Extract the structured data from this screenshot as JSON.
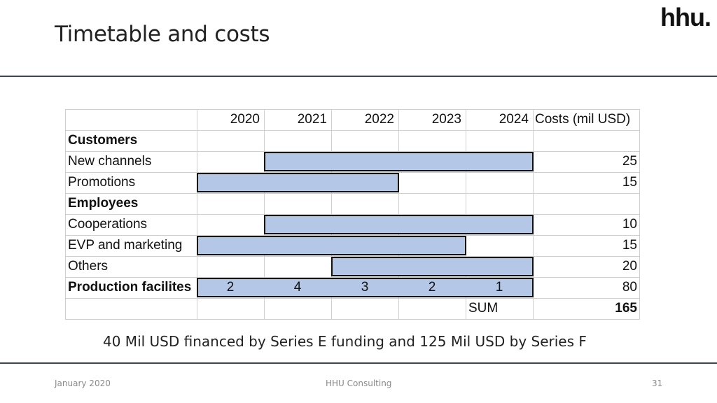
{
  "logo": "hhu.",
  "slide": {
    "title": "Timetable and costs"
  },
  "table": {
    "years": [
      "2020",
      "2021",
      "2022",
      "2023",
      "2024"
    ],
    "cost_header": "Costs (mil USD)",
    "rows": [
      {
        "label": "Customers",
        "bold": true,
        "cost": "",
        "bar": null
      },
      {
        "label": "New channels",
        "bold": false,
        "cost": "25",
        "bar": {
          "start": "2021",
          "end": "2024"
        }
      },
      {
        "label": "Promotions",
        "bold": false,
        "cost": "15",
        "bar": {
          "start": "2020",
          "end": "2022"
        }
      },
      {
        "label": "Employees",
        "bold": true,
        "cost": "",
        "bar": null
      },
      {
        "label": "Cooperations",
        "bold": false,
        "cost": "10",
        "bar": {
          "start": "2021",
          "end": "2024"
        }
      },
      {
        "label": "EVP and marketing",
        "bold": false,
        "cost": "15",
        "bar": {
          "start": "2020",
          "end": "2023"
        }
      },
      {
        "label": "Others",
        "bold": false,
        "cost": "20",
        "bar": {
          "start": "2022",
          "end": "2024"
        }
      },
      {
        "label": "Production facilites",
        "bold": true,
        "cost": "80",
        "bar": {
          "start": "2020",
          "end": "2024",
          "values": [
            "2",
            "4",
            "3",
            "2",
            "1"
          ]
        }
      }
    ],
    "sum_label": "SUM",
    "sum_value": "165"
  },
  "note": "40 Mil USD financed by Series E funding and 125 Mil USD by Series F",
  "footer": {
    "date": "January 2020",
    "center": "HHU Consulting",
    "page": "31"
  },
  "colors": {
    "bar_fill": "#b4c7e7",
    "rule": "#3a4556"
  }
}
